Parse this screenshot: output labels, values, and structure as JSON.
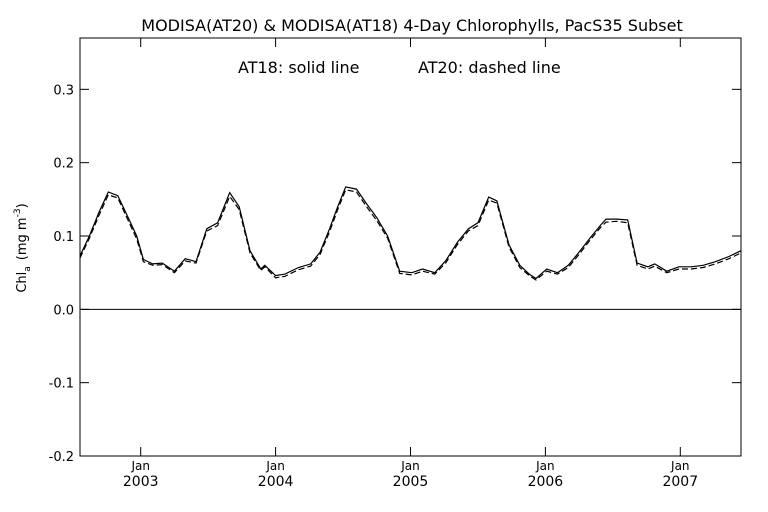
{
  "chart_data": {
    "type": "line",
    "title": "MODISA(AT20) & MODISA(AT18) 4-Day Chlorophylls, PacS35 Subset",
    "annotation_left": "AT18: solid line",
    "annotation_right": "AT20: dashed line",
    "ylabel_main": "Chl",
    "ylabel_sub": "a",
    "ylabel_units": "(mg m",
    "ylabel_sup": "-3",
    "ylabel_close": ")",
    "ylim": [
      -0.2,
      0.37
    ],
    "yticks": [
      {
        "value": -0.2,
        "label": "-0.2"
      },
      {
        "value": -0.1,
        "label": "-0.1"
      },
      {
        "value": 0.0,
        "label": "0.0"
      },
      {
        "value": 0.1,
        "label": "0.1"
      },
      {
        "value": 0.2,
        "label": "0.2"
      },
      {
        "value": 0.3,
        "label": "0.3"
      }
    ],
    "xlim": [
      2002.55,
      2007.45
    ],
    "xticks": [
      {
        "value": 2003.0,
        "month": "Jan",
        "year": "2003"
      },
      {
        "value": 2004.0,
        "month": "Jan",
        "year": "2004"
      },
      {
        "value": 2005.0,
        "month": "Jan",
        "year": "2005"
      },
      {
        "value": 2006.0,
        "month": "Jan",
        "year": "2006"
      },
      {
        "value": 2007.0,
        "month": "Jan",
        "year": "2007"
      }
    ],
    "zero_line": 0.0,
    "grid": false,
    "series": [
      {
        "name": "AT18",
        "style": "solid",
        "points": [
          [
            2002.55,
            0.073
          ],
          [
            2002.62,
            0.1
          ],
          [
            2002.69,
            0.132
          ],
          [
            2002.76,
            0.16
          ],
          [
            2002.83,
            0.155
          ],
          [
            2002.9,
            0.128
          ],
          [
            2002.97,
            0.1
          ],
          [
            2003.02,
            0.068
          ],
          [
            2003.09,
            0.062
          ],
          [
            2003.16,
            0.063
          ],
          [
            2003.25,
            0.052
          ],
          [
            2003.33,
            0.069
          ],
          [
            2003.41,
            0.065
          ],
          [
            2003.49,
            0.11
          ],
          [
            2003.57,
            0.118
          ],
          [
            2003.66,
            0.159
          ],
          [
            2003.73,
            0.14
          ],
          [
            2003.81,
            0.08
          ],
          [
            2003.89,
            0.055
          ],
          [
            2003.92,
            0.06
          ],
          [
            2004.0,
            0.046
          ],
          [
            2004.07,
            0.048
          ],
          [
            2004.17,
            0.057
          ],
          [
            2004.26,
            0.062
          ],
          [
            2004.33,
            0.078
          ],
          [
            2004.4,
            0.11
          ],
          [
            2004.46,
            0.14
          ],
          [
            2004.52,
            0.167
          ],
          [
            2004.6,
            0.164
          ],
          [
            2004.67,
            0.145
          ],
          [
            2004.75,
            0.125
          ],
          [
            2004.83,
            0.1
          ],
          [
            2004.92,
            0.052
          ],
          [
            2005.01,
            0.05
          ],
          [
            2005.09,
            0.055
          ],
          [
            2005.18,
            0.05
          ],
          [
            2005.26,
            0.066
          ],
          [
            2005.35,
            0.092
          ],
          [
            2005.43,
            0.11
          ],
          [
            2005.5,
            0.118
          ],
          [
            2005.58,
            0.153
          ],
          [
            2005.64,
            0.148
          ],
          [
            2005.73,
            0.088
          ],
          [
            2005.81,
            0.06
          ],
          [
            2005.88,
            0.048
          ],
          [
            2005.93,
            0.042
          ],
          [
            2006.01,
            0.055
          ],
          [
            2006.09,
            0.05
          ],
          [
            2006.17,
            0.06
          ],
          [
            2006.25,
            0.078
          ],
          [
            2006.33,
            0.097
          ],
          [
            2006.41,
            0.115
          ],
          [
            2006.45,
            0.123
          ],
          [
            2006.53,
            0.123
          ],
          [
            2006.61,
            0.122
          ],
          [
            2006.68,
            0.063
          ],
          [
            2006.76,
            0.058
          ],
          [
            2006.81,
            0.062
          ],
          [
            2006.9,
            0.052
          ],
          [
            2006.99,
            0.058
          ],
          [
            2007.08,
            0.058
          ],
          [
            2007.17,
            0.06
          ],
          [
            2007.26,
            0.065
          ],
          [
            2007.36,
            0.072
          ],
          [
            2007.45,
            0.08
          ]
        ]
      },
      {
        "name": "AT20",
        "style": "dashed",
        "points": [
          [
            2002.55,
            0.07
          ],
          [
            2002.62,
            0.097
          ],
          [
            2002.69,
            0.128
          ],
          [
            2002.76,
            0.156
          ],
          [
            2002.83,
            0.152
          ],
          [
            2002.9,
            0.124
          ],
          [
            2002.97,
            0.096
          ],
          [
            2003.02,
            0.065
          ],
          [
            2003.09,
            0.06
          ],
          [
            2003.16,
            0.061
          ],
          [
            2003.25,
            0.05
          ],
          [
            2003.33,
            0.066
          ],
          [
            2003.41,
            0.063
          ],
          [
            2003.49,
            0.107
          ],
          [
            2003.57,
            0.114
          ],
          [
            2003.66,
            0.154
          ],
          [
            2003.73,
            0.136
          ],
          [
            2003.81,
            0.077
          ],
          [
            2003.89,
            0.053
          ],
          [
            2003.92,
            0.058
          ],
          [
            2004.0,
            0.043
          ],
          [
            2004.07,
            0.045
          ],
          [
            2004.17,
            0.054
          ],
          [
            2004.26,
            0.059
          ],
          [
            2004.33,
            0.075
          ],
          [
            2004.4,
            0.106
          ],
          [
            2004.46,
            0.136
          ],
          [
            2004.52,
            0.163
          ],
          [
            2004.6,
            0.16
          ],
          [
            2004.67,
            0.141
          ],
          [
            2004.75,
            0.121
          ],
          [
            2004.83,
            0.097
          ],
          [
            2004.92,
            0.049
          ],
          [
            2005.01,
            0.047
          ],
          [
            2005.09,
            0.052
          ],
          [
            2005.18,
            0.048
          ],
          [
            2005.26,
            0.063
          ],
          [
            2005.35,
            0.089
          ],
          [
            2005.43,
            0.107
          ],
          [
            2005.5,
            0.114
          ],
          [
            2005.58,
            0.149
          ],
          [
            2005.64,
            0.145
          ],
          [
            2005.73,
            0.085
          ],
          [
            2005.81,
            0.057
          ],
          [
            2005.88,
            0.046
          ],
          [
            2005.93,
            0.04
          ],
          [
            2006.01,
            0.052
          ],
          [
            2006.09,
            0.048
          ],
          [
            2006.17,
            0.057
          ],
          [
            2006.25,
            0.075
          ],
          [
            2006.33,
            0.094
          ],
          [
            2006.41,
            0.112
          ],
          [
            2006.45,
            0.119
          ],
          [
            2006.53,
            0.12
          ],
          [
            2006.61,
            0.118
          ],
          [
            2006.68,
            0.06
          ],
          [
            2006.76,
            0.055
          ],
          [
            2006.81,
            0.059
          ],
          [
            2006.9,
            0.05
          ],
          [
            2006.99,
            0.055
          ],
          [
            2007.08,
            0.055
          ],
          [
            2007.17,
            0.057
          ],
          [
            2007.26,
            0.062
          ],
          [
            2007.36,
            0.069
          ],
          [
            2007.45,
            0.077
          ]
        ]
      }
    ]
  }
}
